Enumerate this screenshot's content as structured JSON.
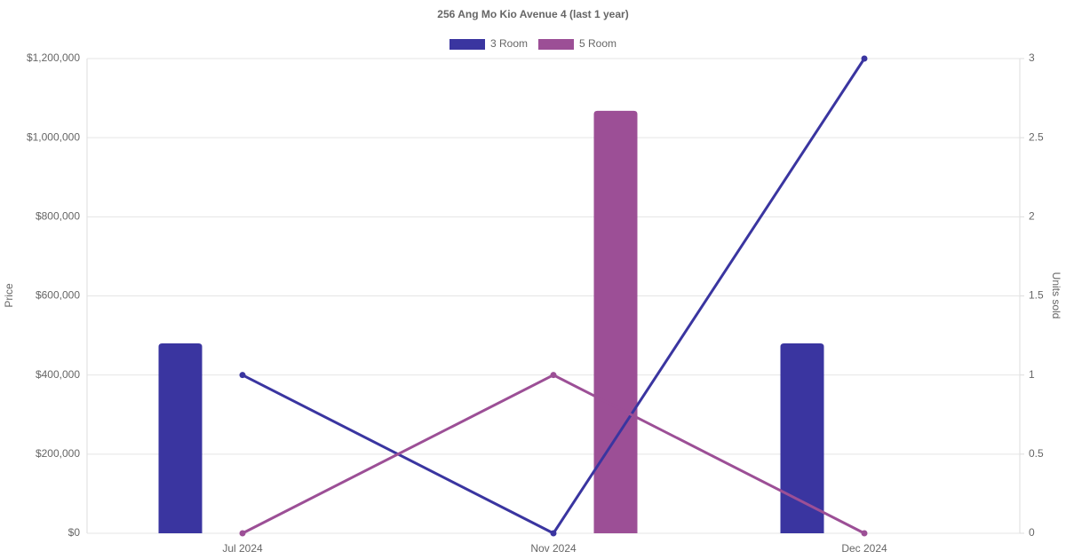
{
  "chart_data": {
    "type": "bar",
    "title": "256 Ang Mo Kio Avenue 4 (last 1 year)",
    "categories": [
      "Jul 2024",
      "Nov 2024",
      "Dec 2024"
    ],
    "y_label": "Price",
    "y2_label": "Units sold",
    "series": [
      {
        "name": "3 Room",
        "color": "#3a35a0",
        "values": [
          480000,
          null,
          480000
        ],
        "units": [
          1,
          0,
          3
        ]
      },
      {
        "name": "5 Room",
        "color": "#9c4f96",
        "values": [
          null,
          1068000,
          null
        ],
        "units": [
          0,
          1,
          0
        ]
      }
    ],
    "ylim": [
      0,
      1200000
    ],
    "yticks": [
      {
        "value": 0,
        "label": "$0"
      },
      {
        "value": 200000,
        "label": "$200,000"
      },
      {
        "value": 400000,
        "label": "$400,000"
      },
      {
        "value": 600000,
        "label": "$600,000"
      },
      {
        "value": 800000,
        "label": "$800,000"
      },
      {
        "value": 1000000,
        "label": "$1,000,000"
      },
      {
        "value": 1200000,
        "label": "$1,200,000"
      }
    ],
    "y2lim": [
      0,
      3
    ],
    "y2ticks": [
      0,
      0.5,
      1,
      1.5,
      2,
      2.5,
      3
    ],
    "grid": true,
    "legend": "top"
  }
}
